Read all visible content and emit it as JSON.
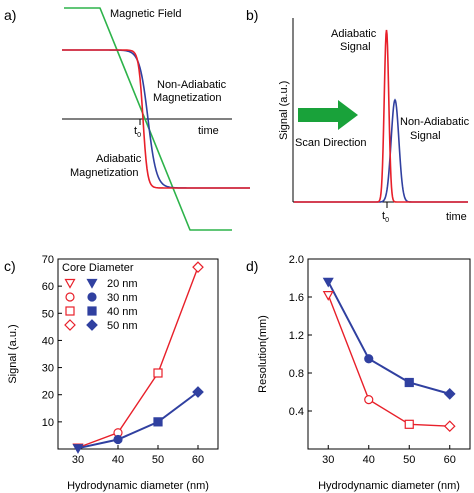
{
  "colors": {
    "red": "#e8202a",
    "blue": "#3040a0",
    "green": "#2db34a",
    "black": "#000000"
  },
  "panels": {
    "a": {
      "label": "a)"
    },
    "b": {
      "label": "b)"
    },
    "c": {
      "label": "c)"
    },
    "d": {
      "label": "d)"
    }
  },
  "chart_data": [
    {
      "panel": "a",
      "type": "line",
      "xlabel": "time",
      "tick_label": "t",
      "tick_sub": "0",
      "series": [
        {
          "name": "Magnetic Field",
          "color": "#2db34a"
        },
        {
          "name": "Non-Adiabatic Magnetization",
          "label_lines": [
            "Non-Adiabatic",
            "Magnetization"
          ],
          "color": "#3040a0"
        },
        {
          "name": "Adiabatic Magnetization",
          "label_lines": [
            "Adiabatic",
            "Magnetization"
          ],
          "color": "#e8202a"
        }
      ],
      "grid": false
    },
    {
      "panel": "b",
      "type": "line",
      "xlabel": "time",
      "ylabel": "Signal (a.u.)",
      "tick_label": "t",
      "tick_sub": "0",
      "arrow_label": "Scan Direction",
      "series": [
        {
          "name": "Adiabatic Signal",
          "label_lines": [
            "Adiabatic",
            "Signal"
          ],
          "color": "#e8202a"
        },
        {
          "name": "Non-Adiabatic Signal",
          "label_lines": [
            "Non-Adiabatic",
            "Signal"
          ],
          "color": "#3040a0"
        }
      ],
      "grid": false
    },
    {
      "panel": "c",
      "type": "scatter",
      "xlabel": "Hydrodynamic diameter (nm)",
      "ylabel": "Signal (a.u.)",
      "xlim": [
        25,
        65
      ],
      "ylim": [
        0,
        70
      ],
      "xticks": [
        30,
        40,
        50,
        60
      ],
      "yticks": [
        10,
        20,
        30,
        40,
        50,
        60,
        70
      ],
      "legend": {
        "title": "Core Diameter",
        "placement": "top-left",
        "entries": [
          {
            "label": "20 nm",
            "open_marker": "triangle-down",
            "filled_marker": "triangle-down"
          },
          {
            "label": "30 nm",
            "open_marker": "circle",
            "filled_marker": "circle"
          },
          {
            "label": "40 nm",
            "open_marker": "square",
            "filled_marker": "square"
          },
          {
            "label": "50 nm",
            "open_marker": "diamond",
            "filled_marker": "diamond"
          }
        ]
      },
      "series": [
        {
          "style": "open",
          "color": "#e8202a",
          "x": [
            30,
            40,
            50,
            60
          ],
          "y": [
            0.5,
            6,
            28,
            67
          ],
          "markers": [
            "triangle-down",
            "circle",
            "square",
            "diamond"
          ]
        },
        {
          "style": "filled",
          "color": "#3040a0",
          "x": [
            30,
            40,
            50,
            60
          ],
          "y": [
            0.3,
            3.5,
            10,
            21
          ],
          "markers": [
            "triangle-down",
            "circle",
            "square",
            "diamond"
          ]
        }
      ],
      "grid": false
    },
    {
      "panel": "d",
      "type": "scatter",
      "xlabel": "Hydrodynamic diameter (nm)",
      "ylabel": "Resolution(mm)",
      "xlim": [
        25,
        65
      ],
      "ylim": [
        0,
        2.0
      ],
      "xticks": [
        30,
        40,
        50,
        60
      ],
      "yticks": [
        0.4,
        0.8,
        1.2,
        1.6,
        2.0
      ],
      "ytick_labels": [
        "0.4",
        "0.8",
        "1.2",
        "1.6",
        "2.0"
      ],
      "series": [
        {
          "style": "filled",
          "color": "#3040a0",
          "x": [
            30,
            40,
            50,
            60
          ],
          "y": [
            1.76,
            0.95,
            0.7,
            0.58
          ],
          "markers": [
            "triangle-down",
            "circle",
            "square",
            "diamond"
          ]
        },
        {
          "style": "open",
          "color": "#e8202a",
          "x": [
            30,
            40,
            50,
            60
          ],
          "y": [
            1.62,
            0.52,
            0.26,
            0.24
          ],
          "markers": [
            "triangle-down",
            "circle",
            "square",
            "diamond"
          ]
        }
      ],
      "grid": false
    }
  ]
}
